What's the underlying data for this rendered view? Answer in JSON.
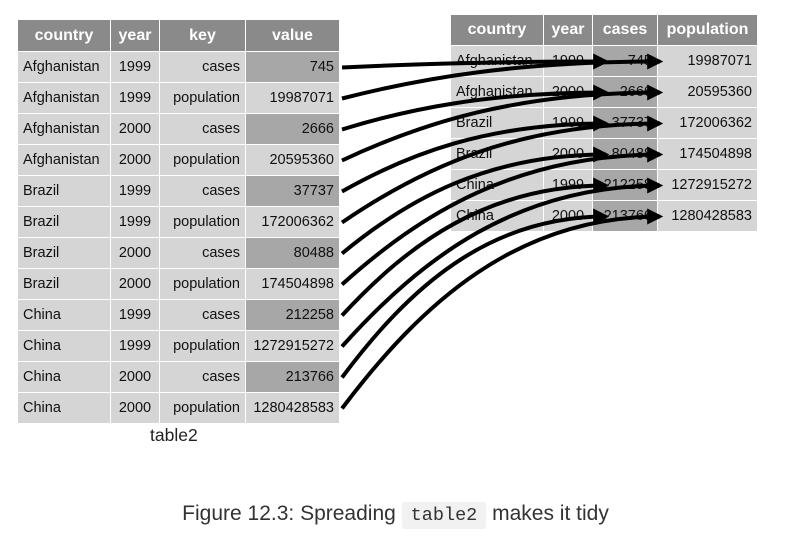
{
  "left_table": {
    "label": "table2",
    "headers": [
      "country",
      "year",
      "key",
      "value"
    ],
    "rows": [
      [
        "Afghanistan",
        "1999",
        "cases",
        "745"
      ],
      [
        "Afghanistan",
        "1999",
        "population",
        "19987071"
      ],
      [
        "Afghanistan",
        "2000",
        "cases",
        "2666"
      ],
      [
        "Afghanistan",
        "2000",
        "population",
        "20595360"
      ],
      [
        "Brazil",
        "1999",
        "cases",
        "37737"
      ],
      [
        "Brazil",
        "1999",
        "population",
        "172006362"
      ],
      [
        "Brazil",
        "2000",
        "cases",
        "80488"
      ],
      [
        "Brazil",
        "2000",
        "population",
        "174504898"
      ],
      [
        "China",
        "1999",
        "cases",
        "212258"
      ],
      [
        "China",
        "1999",
        "population",
        "1272915272"
      ],
      [
        "China",
        "2000",
        "cases",
        "213766"
      ],
      [
        "China",
        "2000",
        "population",
        "1280428583"
      ]
    ]
  },
  "right_table": {
    "headers": [
      "country",
      "year",
      "cases",
      "population"
    ],
    "rows": [
      [
        "Afghanistan",
        "1999",
        "745",
        "19987071"
      ],
      [
        "Afghanistan",
        "2000",
        "2666",
        "20595360"
      ],
      [
        "Brazil",
        "1999",
        "37737",
        "172006362"
      ],
      [
        "Brazil",
        "2000",
        "80488",
        "174504898"
      ],
      [
        "China",
        "1999",
        "212258",
        "1272915272"
      ],
      [
        "China",
        "2000",
        "213766",
        "1280428583"
      ]
    ]
  },
  "caption": {
    "prefix": "Figure 12.3: Spreading",
    "code": "table2",
    "suffix": "makes it tidy"
  },
  "colors": {
    "header_bg": "#8a8a8a",
    "cell_bg": "#d5d5d5",
    "highlight_bg": "#a7a7a7",
    "arrow": "#000000"
  }
}
